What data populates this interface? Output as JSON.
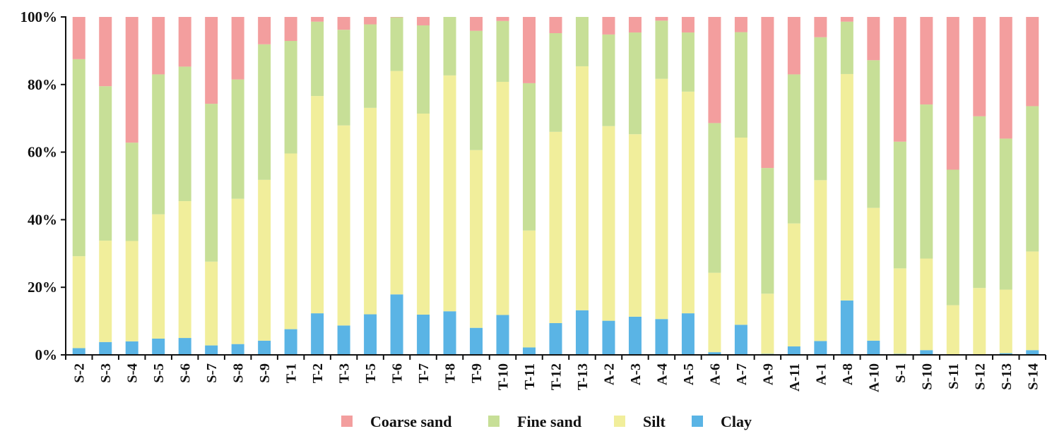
{
  "chart_data": {
    "type": "bar",
    "stacked": true,
    "title": "",
    "xlabel": "",
    "ylabel": "",
    "ylim": [
      0,
      100
    ],
    "y_ticks": [
      "0%",
      "20%",
      "40%",
      "60%",
      "80%",
      "100%"
    ],
    "legend_position": "bottom",
    "categories": [
      "S-2",
      "S-3",
      "S-4",
      "S-5",
      "S-6",
      "S-7",
      "S-8",
      "S-9",
      "T-1",
      "T-2",
      "T-3",
      "T-5",
      "T-6",
      "T-7",
      "T-8",
      "T-9",
      "T-10",
      "T-11",
      "T-12",
      "T-13",
      "A-2",
      "A-3",
      "A-4",
      "A-5",
      "A-6",
      "A-7",
      "A-9",
      "A-11",
      "A-1",
      "A-8",
      "A-10",
      "S-1",
      "S-10",
      "S-11",
      "S-12",
      "S-13",
      "S-14"
    ],
    "series": [
      {
        "name": "Clay",
        "color": "#5ab4e5",
        "values": [
          2.0,
          3.8,
          4.0,
          4.8,
          5.0,
          2.8,
          3.2,
          4.2,
          7.6,
          12.3,
          8.7,
          12.0,
          17.9,
          11.9,
          12.9,
          8.0,
          11.8,
          2.2,
          9.4,
          13.2,
          10.1,
          11.3,
          10.6,
          12.3,
          0.8,
          8.9,
          0.3,
          2.5,
          4.1,
          16.1,
          4.2,
          0.3,
          1.4,
          0.1,
          0.2,
          0.5,
          1.4
        ]
      },
      {
        "name": "Silt",
        "color": "#f1ee9b",
        "values": [
          27.2,
          30.0,
          29.7,
          36.8,
          40.5,
          24.8,
          43.0,
          47.6,
          52.0,
          64.3,
          59.2,
          61.1,
          66.1,
          59.5,
          69.8,
          52.6,
          69.0,
          34.6,
          56.6,
          72.2,
          57.6,
          54.0,
          71.1,
          65.6,
          23.5,
          55.4,
          17.8,
          36.4,
          47.6,
          67.0,
          39.3,
          25.3,
          27.1,
          14.6,
          19.6,
          18.8,
          29.2
        ]
      },
      {
        "name": "Fine sand",
        "color": "#c7df97",
        "values": [
          58.3,
          45.7,
          29.1,
          41.4,
          39.8,
          46.7,
          35.3,
          40.1,
          33.3,
          22.0,
          28.3,
          24.7,
          15.9,
          26.1,
          17.3,
          35.3,
          18.0,
          43.6,
          29.2,
          14.6,
          27.1,
          30.1,
          17.2,
          17.5,
          44.3,
          31.2,
          37.2,
          44.1,
          42.3,
          15.5,
          43.7,
          37.5,
          45.6,
          40.1,
          50.8,
          44.7,
          43.0
        ]
      },
      {
        "name": "Coarse sand",
        "color": "#f39e9e",
        "values": [
          12.5,
          20.5,
          37.2,
          17.0,
          14.7,
          25.7,
          18.5,
          8.1,
          7.1,
          1.4,
          3.8,
          2.2,
          0.1,
          2.5,
          0.0,
          4.1,
          1.2,
          19.6,
          4.8,
          0.0,
          5.2,
          4.6,
          1.1,
          4.6,
          31.4,
          4.5,
          44.7,
          17.0,
          6.0,
          1.4,
          12.8,
          36.9,
          25.9,
          45.2,
          29.4,
          36.0,
          26.4
        ]
      }
    ],
    "legend": [
      "Coarse sand",
      "Fine sand",
      "Silt",
      "Clay"
    ]
  }
}
